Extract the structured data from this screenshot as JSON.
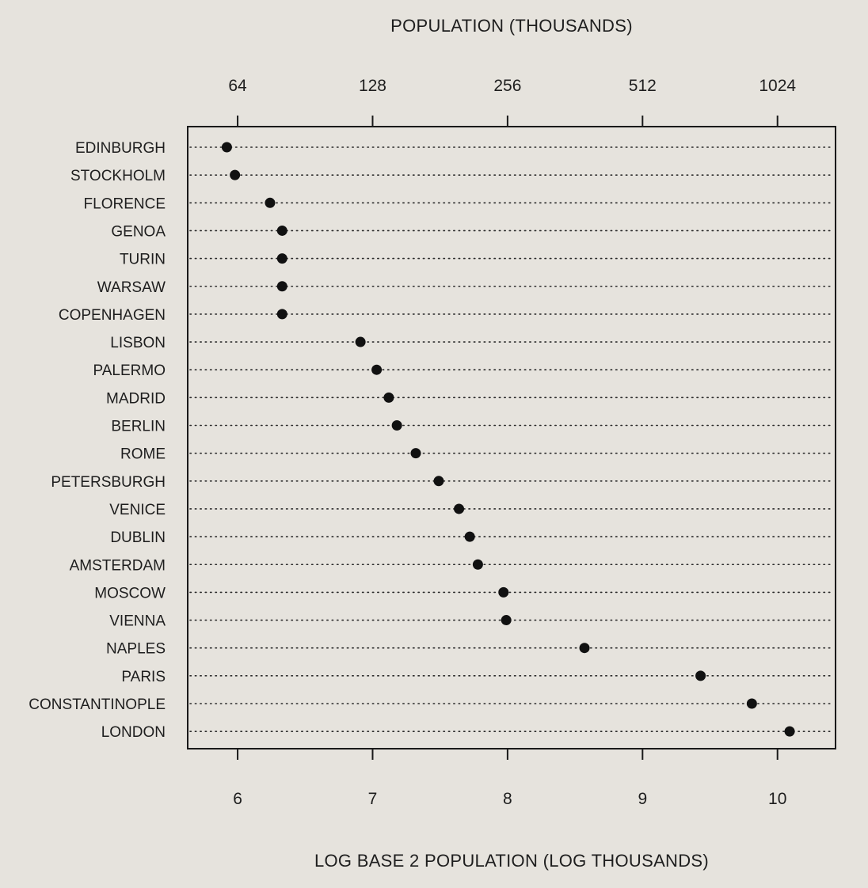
{
  "chart_data": {
    "type": "scatter",
    "subtype": "dot-plot",
    "top_axis_title": "POPULATION (THOUSANDS)",
    "bottom_axis_title": "LOG BASE 2 POPULATION (LOG THOUSANDS)",
    "top_ticks": [
      64,
      128,
      256,
      512,
      1024
    ],
    "bottom_ticks": [
      6,
      7,
      8,
      9,
      10
    ],
    "x_scale": "log2",
    "xlim_log2": [
      5.63,
      10.43
    ],
    "grid": "dotted horizontal lines per category",
    "categories": [
      "EDINBURGH",
      "STOCKHOLM",
      "FLORENCE",
      "GENOA",
      "TURIN",
      "WARSAW",
      "COPENHAGEN",
      "LISBON",
      "PALERMO",
      "MADRID",
      "BERLIN",
      "ROME",
      "PETERSBURGH",
      "VENICE",
      "DUBLIN",
      "AMSTERDAM",
      "MOSCOW",
      "VIENNA",
      "NAPLES",
      "PARIS",
      "CONSTANTINOPLE",
      "LONDON"
    ],
    "values_log2": [
      5.92,
      5.98,
      6.24,
      6.33,
      6.33,
      6.33,
      6.33,
      6.91,
      7.03,
      7.12,
      7.18,
      7.32,
      7.49,
      7.64,
      7.72,
      7.78,
      7.97,
      7.99,
      8.57,
      9.43,
      9.81,
      10.09
    ]
  }
}
